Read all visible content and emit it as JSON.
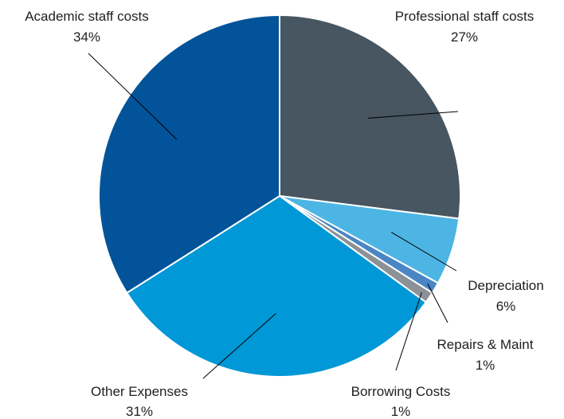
{
  "chart_data": {
    "type": "pie",
    "title": "",
    "slices": [
      {
        "label": "Professional staff costs",
        "value": 27,
        "value_label": "27%",
        "color": "#475661"
      },
      {
        "label": "Depreciation",
        "value": 6,
        "value_label": "6%",
        "color": "#4db5e3"
      },
      {
        "label": "Repairs & Maint",
        "value": 1,
        "value_label": "1%",
        "color": "#4a86c4"
      },
      {
        "label": "Borrowing Costs",
        "value": 1,
        "value_label": "1%",
        "color": "#8c9196"
      },
      {
        "label": "Other Expenses",
        "value": 31,
        "value_label": "31%",
        "color": "#0098d6"
      },
      {
        "label": "Academic staff costs",
        "value": 34,
        "value_label": "34%",
        "color": "#02539a"
      }
    ],
    "start_position": "12 o'clock",
    "direction": "clockwise",
    "legend": "none"
  }
}
